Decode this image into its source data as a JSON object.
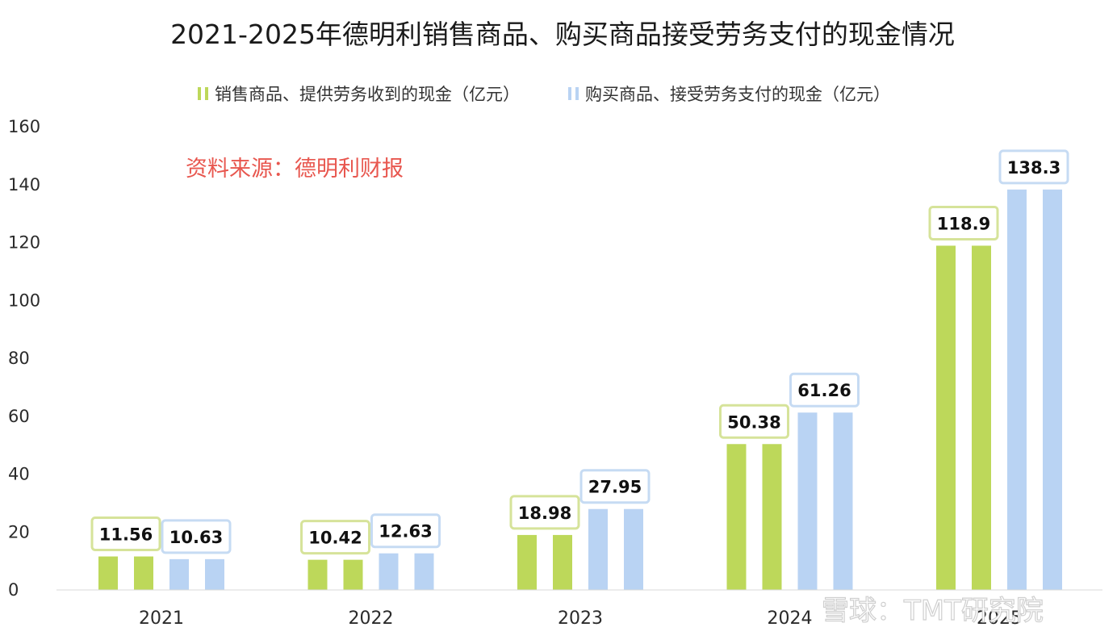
{
  "chart_data": {
    "type": "bar",
    "title": "2021-2025年德明利销售商品、购买商品接受劳务支付的现金情况",
    "source_note": "资料来源：德明利财报",
    "watermark": "雪球：TMT研究院",
    "categories": [
      "2021",
      "2022",
      "2023",
      "2024",
      "2025"
    ],
    "series": [
      {
        "name": "销售商品、提供劳务收到的现金（亿元）",
        "color": "#bdd85a",
        "label_border": "#d6e39a",
        "values": [
          11.56,
          10.42,
          18.98,
          50.38,
          118.9
        ],
        "labels": [
          "11.56",
          "10.42",
          "18.98",
          "50.38",
          "118.9"
        ]
      },
      {
        "name": "购买商品、接受劳务支付的现金（亿元）",
        "color": "#b9d3f3",
        "label_border": "#c6dbf3",
        "values": [
          10.63,
          12.63,
          27.95,
          61.26,
          138.3
        ],
        "labels": [
          "10.63",
          "12.63",
          "27.95",
          "61.26",
          "138.3"
        ]
      }
    ],
    "y_ticks": [
      "0",
      "20",
      "40",
      "60",
      "80",
      "100",
      "120",
      "140",
      "160"
    ],
    "ylim": [
      0,
      160
    ],
    "xlabel": "",
    "ylabel": "",
    "grid": false,
    "legend_position": "top-center"
  }
}
